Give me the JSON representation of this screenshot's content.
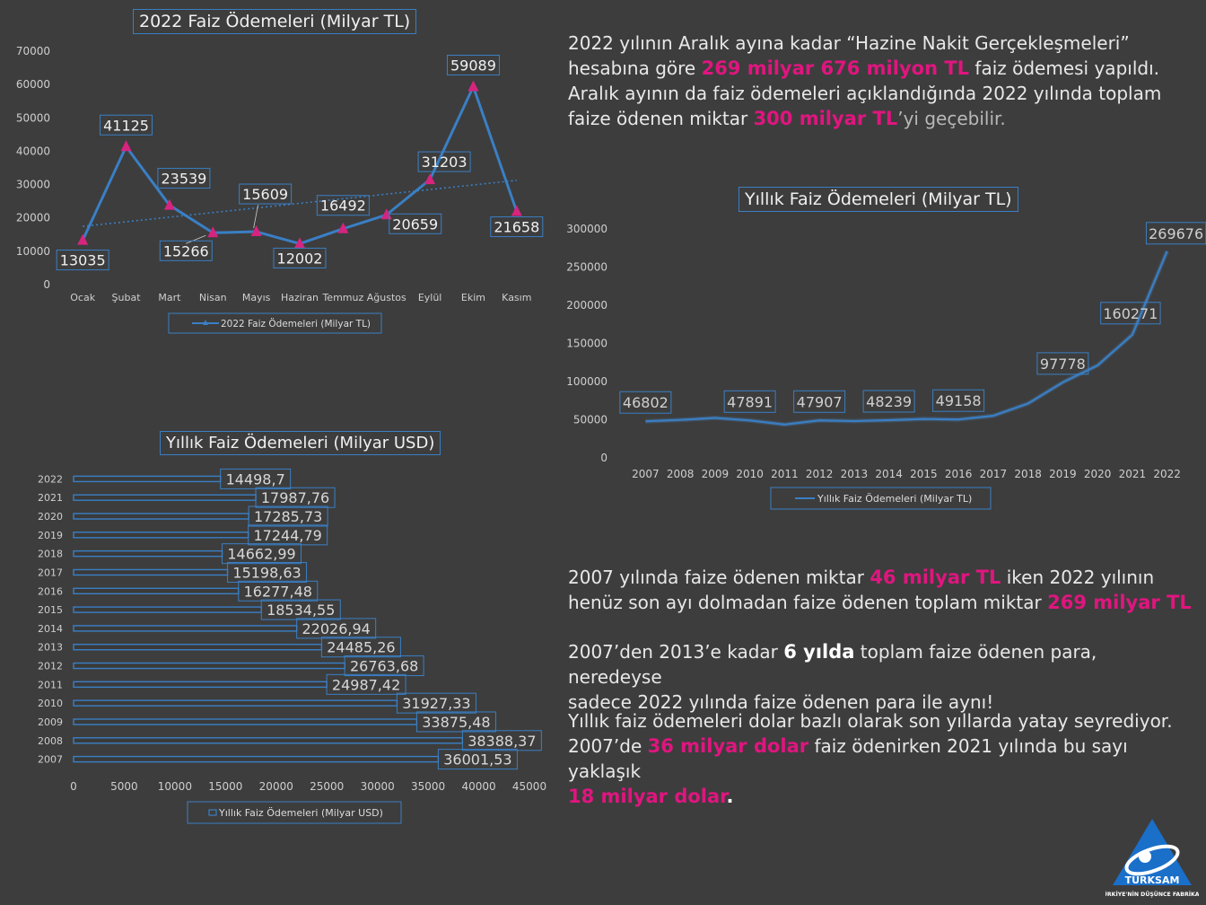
{
  "chart_data": [
    {
      "type": "line",
      "title": "2022 Faiz Ödemeleri (Milyar TL)",
      "legend": "2022 Faiz Ödemeleri (Milyar TL)",
      "categories": [
        "Ocak",
        "Şubat",
        "Mart",
        "Nisan",
        "Mayıs",
        "Haziran",
        "Temmuz",
        "Ağustos",
        "Eylül",
        "Ekim",
        "Kasım"
      ],
      "values": [
        13035,
        41125,
        23539,
        15266,
        15609,
        12002,
        16492,
        20659,
        31203,
        59089,
        21658
      ],
      "labels": [
        "13035",
        "41125",
        "23539",
        "15266",
        "15609",
        "12002",
        "16492",
        "20659",
        "31203",
        "59089",
        "21658"
      ],
      "yticks": [
        "0",
        "10000",
        "20000",
        "30000",
        "40000",
        "50000",
        "60000",
        "70000"
      ],
      "ylim": [
        0,
        70000
      ],
      "trendline": [
        17200,
        31000
      ],
      "line_color": "#3a7fc4",
      "marker_color": "#d6247f"
    },
    {
      "type": "line",
      "title": "Yıllık Faiz Ödemeleri (Milyar TL)",
      "legend": "Yıllık Faiz Ödemeleri (Milyar TL)",
      "categories": [
        "2007",
        "2008",
        "2009",
        "2010",
        "2011",
        "2012",
        "2013",
        "2014",
        "2015",
        "2016",
        "2017",
        "2018",
        "2019",
        "2020",
        "2021",
        "2022"
      ],
      "values": [
        46802,
        48600,
        51200,
        47891,
        42500,
        47907,
        47000,
        48239,
        49800,
        49158,
        54000,
        70000,
        97778,
        120000,
        160271,
        269676
      ],
      "labels": [
        "46802",
        "",
        "",
        "47891",
        "",
        "47907",
        "",
        "48239",
        "",
        "49158",
        "",
        "",
        "97778",
        "",
        "160271",
        "269676"
      ],
      "yticks": [
        "0",
        "50000",
        "100000",
        "150000",
        "200000",
        "250000",
        "300000"
      ],
      "ylim": [
        0,
        300000
      ],
      "line_color": "#3a7fc4"
    },
    {
      "type": "bar",
      "orientation": "horizontal",
      "title": "Yıllık Faiz Ödemeleri (Milyar USD)",
      "legend": "Yıllık Faiz Ödemeleri (Milyar USD)",
      "categories": [
        "2022",
        "2021",
        "2020",
        "2019",
        "2018",
        "2017",
        "2016",
        "2015",
        "2014",
        "2013",
        "2012",
        "2011",
        "2010",
        "2009",
        "2008",
        "2007"
      ],
      "values": [
        14498.7,
        17987.76,
        17285.73,
        17244.79,
        14662.99,
        15198.63,
        16277.48,
        18534.55,
        22026.94,
        24485.26,
        26763.68,
        24987.42,
        31927.33,
        33875.48,
        38388.37,
        36001.53
      ],
      "labels": [
        "14498,7",
        "17987,76",
        "17285,73",
        "17244,79",
        "14662,99",
        "15198,63",
        "16277,48",
        "18534,55",
        "22026,94",
        "24485,26",
        "26763,68",
        "24987,42",
        "31927,33",
        "33875,48",
        "38388,37",
        "36001,53"
      ],
      "xticks": [
        "0",
        "5000",
        "10000",
        "15000",
        "20000",
        "25000",
        "30000",
        "35000",
        "40000",
        "45000"
      ],
      "xlim": [
        0,
        45000
      ],
      "bar_color": "#2f5f96"
    }
  ],
  "texts": {
    "p1": {
      "a": "2022 yılının Aralık ayına kadar “Hazine Nakit Gerçekleşmeleri”",
      "b": "hesabına göre ",
      "c": "269 milyar 676 milyon TL",
      "d": " faiz ödemesi yapıldı.",
      "e": "Aralık ayının da faiz ödemeleri açıklandığında 2022 yılında toplam",
      "f": "faize ödenen miktar ",
      "g": "300 milyar TL",
      "h": "’yi geçebilir."
    },
    "p2": {
      "a": "2007 yılında faize ödenen miktar ",
      "b": "46 milyar TL",
      "c": " iken 2022 yılının",
      "d": "henüz son ayı dolmadan faize ödenen toplam miktar ",
      "e": "269 milyar TL"
    },
    "p3": {
      "a": "2007’den 2013’e kadar ",
      "b": "6 yılda",
      "c": " toplam faize ödenen para, neredeyse",
      "d": "sadece 2022 yılında faize ödenen para ile aynı!"
    },
    "p4": {
      "a": "Yıllık faiz ödemeleri dolar bazlı olarak son yıllarda yatay seyrediyor.",
      "b": "2007’de ",
      "c": "36 milyar dolar",
      "d": " faiz ödenirken 2021 yılında bu sayı yaklaşık",
      "e": "18 milyar dolar",
      "f": "."
    }
  },
  "logo": {
    "name": "TÜRKSAM",
    "tagline": "TÜRKİYE'NİN DÜŞÜNCE FABRİKASI"
  }
}
